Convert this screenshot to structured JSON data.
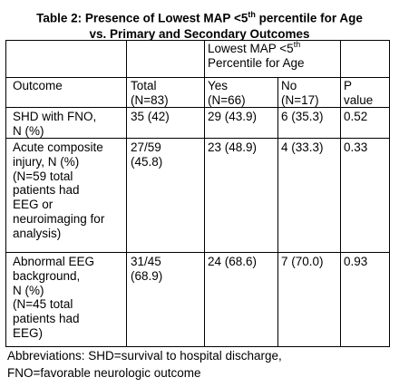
{
  "title": {
    "line1_pre": "Table 2:  Presence of Lowest MAP <5",
    "line1_sup": "th",
    "line1_post": " percentile for Age",
    "line2": "vs. Primary and Secondary Outcomes"
  },
  "table": {
    "group_header": {
      "pre": "Lowest MAP <5",
      "sup": "th",
      "post": "\nPercentile for Age"
    },
    "columns": {
      "outcome": "Outcome",
      "total": "Total\n(N=83)",
      "yes": "Yes\n(N=66)",
      "no": "No\n(N=17)",
      "p": "P\nvalue"
    },
    "rows": [
      {
        "outcome": "SHD with FNO,\nN (%)",
        "total": "35 (42)",
        "yes": "29 (43.9)",
        "no": "6 (35.3)",
        "p": "0.52"
      },
      {
        "outcome": "Acute composite\ninjury, N (%)\n(N=59 total\npatients had\nEEG or\nneuroimaging for\nanalysis)",
        "total": "27/59\n(45.8)",
        "yes": "23 (48.9)",
        "no": "4 (33.3)",
        "p": "0.33"
      },
      {
        "outcome": "Abnormal EEG\nbackground,\nN (%)\n(N=45 total\npatients had\nEEG)",
        "total": "31/45\n(68.9)",
        "yes": "24 (68.6)",
        "no": "7 (70.0)",
        "p": "0.93"
      }
    ]
  },
  "footer": "Abbreviations: SHD=survival to hospital discharge,\nFNO=favorable neurologic outcome"
}
